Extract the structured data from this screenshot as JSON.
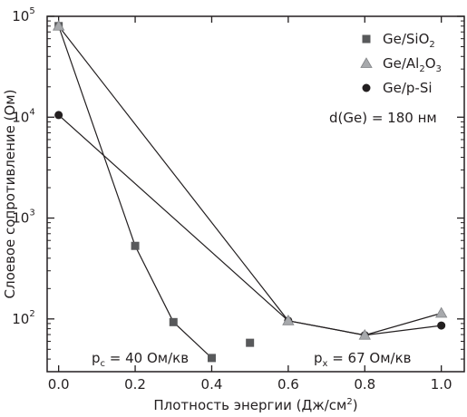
{
  "chart_data": {
    "type": "scatter",
    "xlabel": "Плотность энергии (Дж/см",
    "xlabel_sup": "2",
    "xlabel_tail": ")",
    "ylabel": "Слоевое сопротивление (Ом)",
    "y_scale": "log",
    "xlim": [
      -0.03,
      1.06
    ],
    "ylim": [
      30,
      100000
    ],
    "x_ticks": [
      0.0,
      0.2,
      0.4,
      0.6,
      0.8,
      1.0
    ],
    "x_tick_labels": [
      "0.0",
      "0.2",
      "0.4",
      "0.6",
      "0.8",
      "1.0"
    ],
    "y_ticks": [
      100,
      1000,
      10000,
      100000
    ],
    "y_tick_labels": [
      {
        "base": "10",
        "exp": "2"
      },
      {
        "base": "10",
        "exp": "3"
      },
      {
        "base": "10",
        "exp": "4"
      },
      {
        "base": "10",
        "exp": "5"
      }
    ],
    "series": [
      {
        "id": "ge-sio2",
        "name_parts": [
          [
            "Ge/SiO",
            "n"
          ],
          [
            "2",
            "sub"
          ]
        ],
        "marker": "square",
        "color": "#58595b",
        "points": [
          {
            "x": 0.0,
            "y": 80000
          },
          {
            "x": 0.2,
            "y": 530
          },
          {
            "x": 0.3,
            "y": 93
          },
          {
            "x": 0.4,
            "y": 41
          },
          {
            "x": 0.5,
            "y": 58
          }
        ],
        "line_upto_index": 3
      },
      {
        "id": "ge-al2o3",
        "name_parts": [
          [
            "Ge/Al",
            "n"
          ],
          [
            "2",
            "sub"
          ],
          [
            "O",
            "n"
          ],
          [
            "3",
            "sub"
          ]
        ],
        "marker": "triangle",
        "color": "#a7a9ac",
        "points": [
          {
            "x": 0.0,
            "y": 80000
          },
          {
            "x": 0.6,
            "y": 96
          },
          {
            "x": 0.8,
            "y": 69
          },
          {
            "x": 1.0,
            "y": 114
          }
        ],
        "line_upto_index": 3
      },
      {
        "id": "ge-psi",
        "name_parts": [
          [
            "Ge/p-Si",
            "n"
          ]
        ],
        "marker": "circle",
        "color": "#231f20",
        "points": [
          {
            "x": 0.0,
            "y": 10500
          },
          {
            "x": 0.6,
            "y": 96
          },
          {
            "x": 0.8,
            "y": 69
          },
          {
            "x": 1.0,
            "y": 86
          }
        ],
        "line_upto_index": 3
      }
    ],
    "legend_position": "top-right",
    "annotations": {
      "thickness": "d(Ge) = 180 нм",
      "pc": {
        "sym": "p",
        "sub": "c",
        "text": " = 40 Ом/кв"
      },
      "px": {
        "sym": "p",
        "sub": "x",
        "text": " = 67 Ом/кв"
      }
    },
    "grid": false
  }
}
